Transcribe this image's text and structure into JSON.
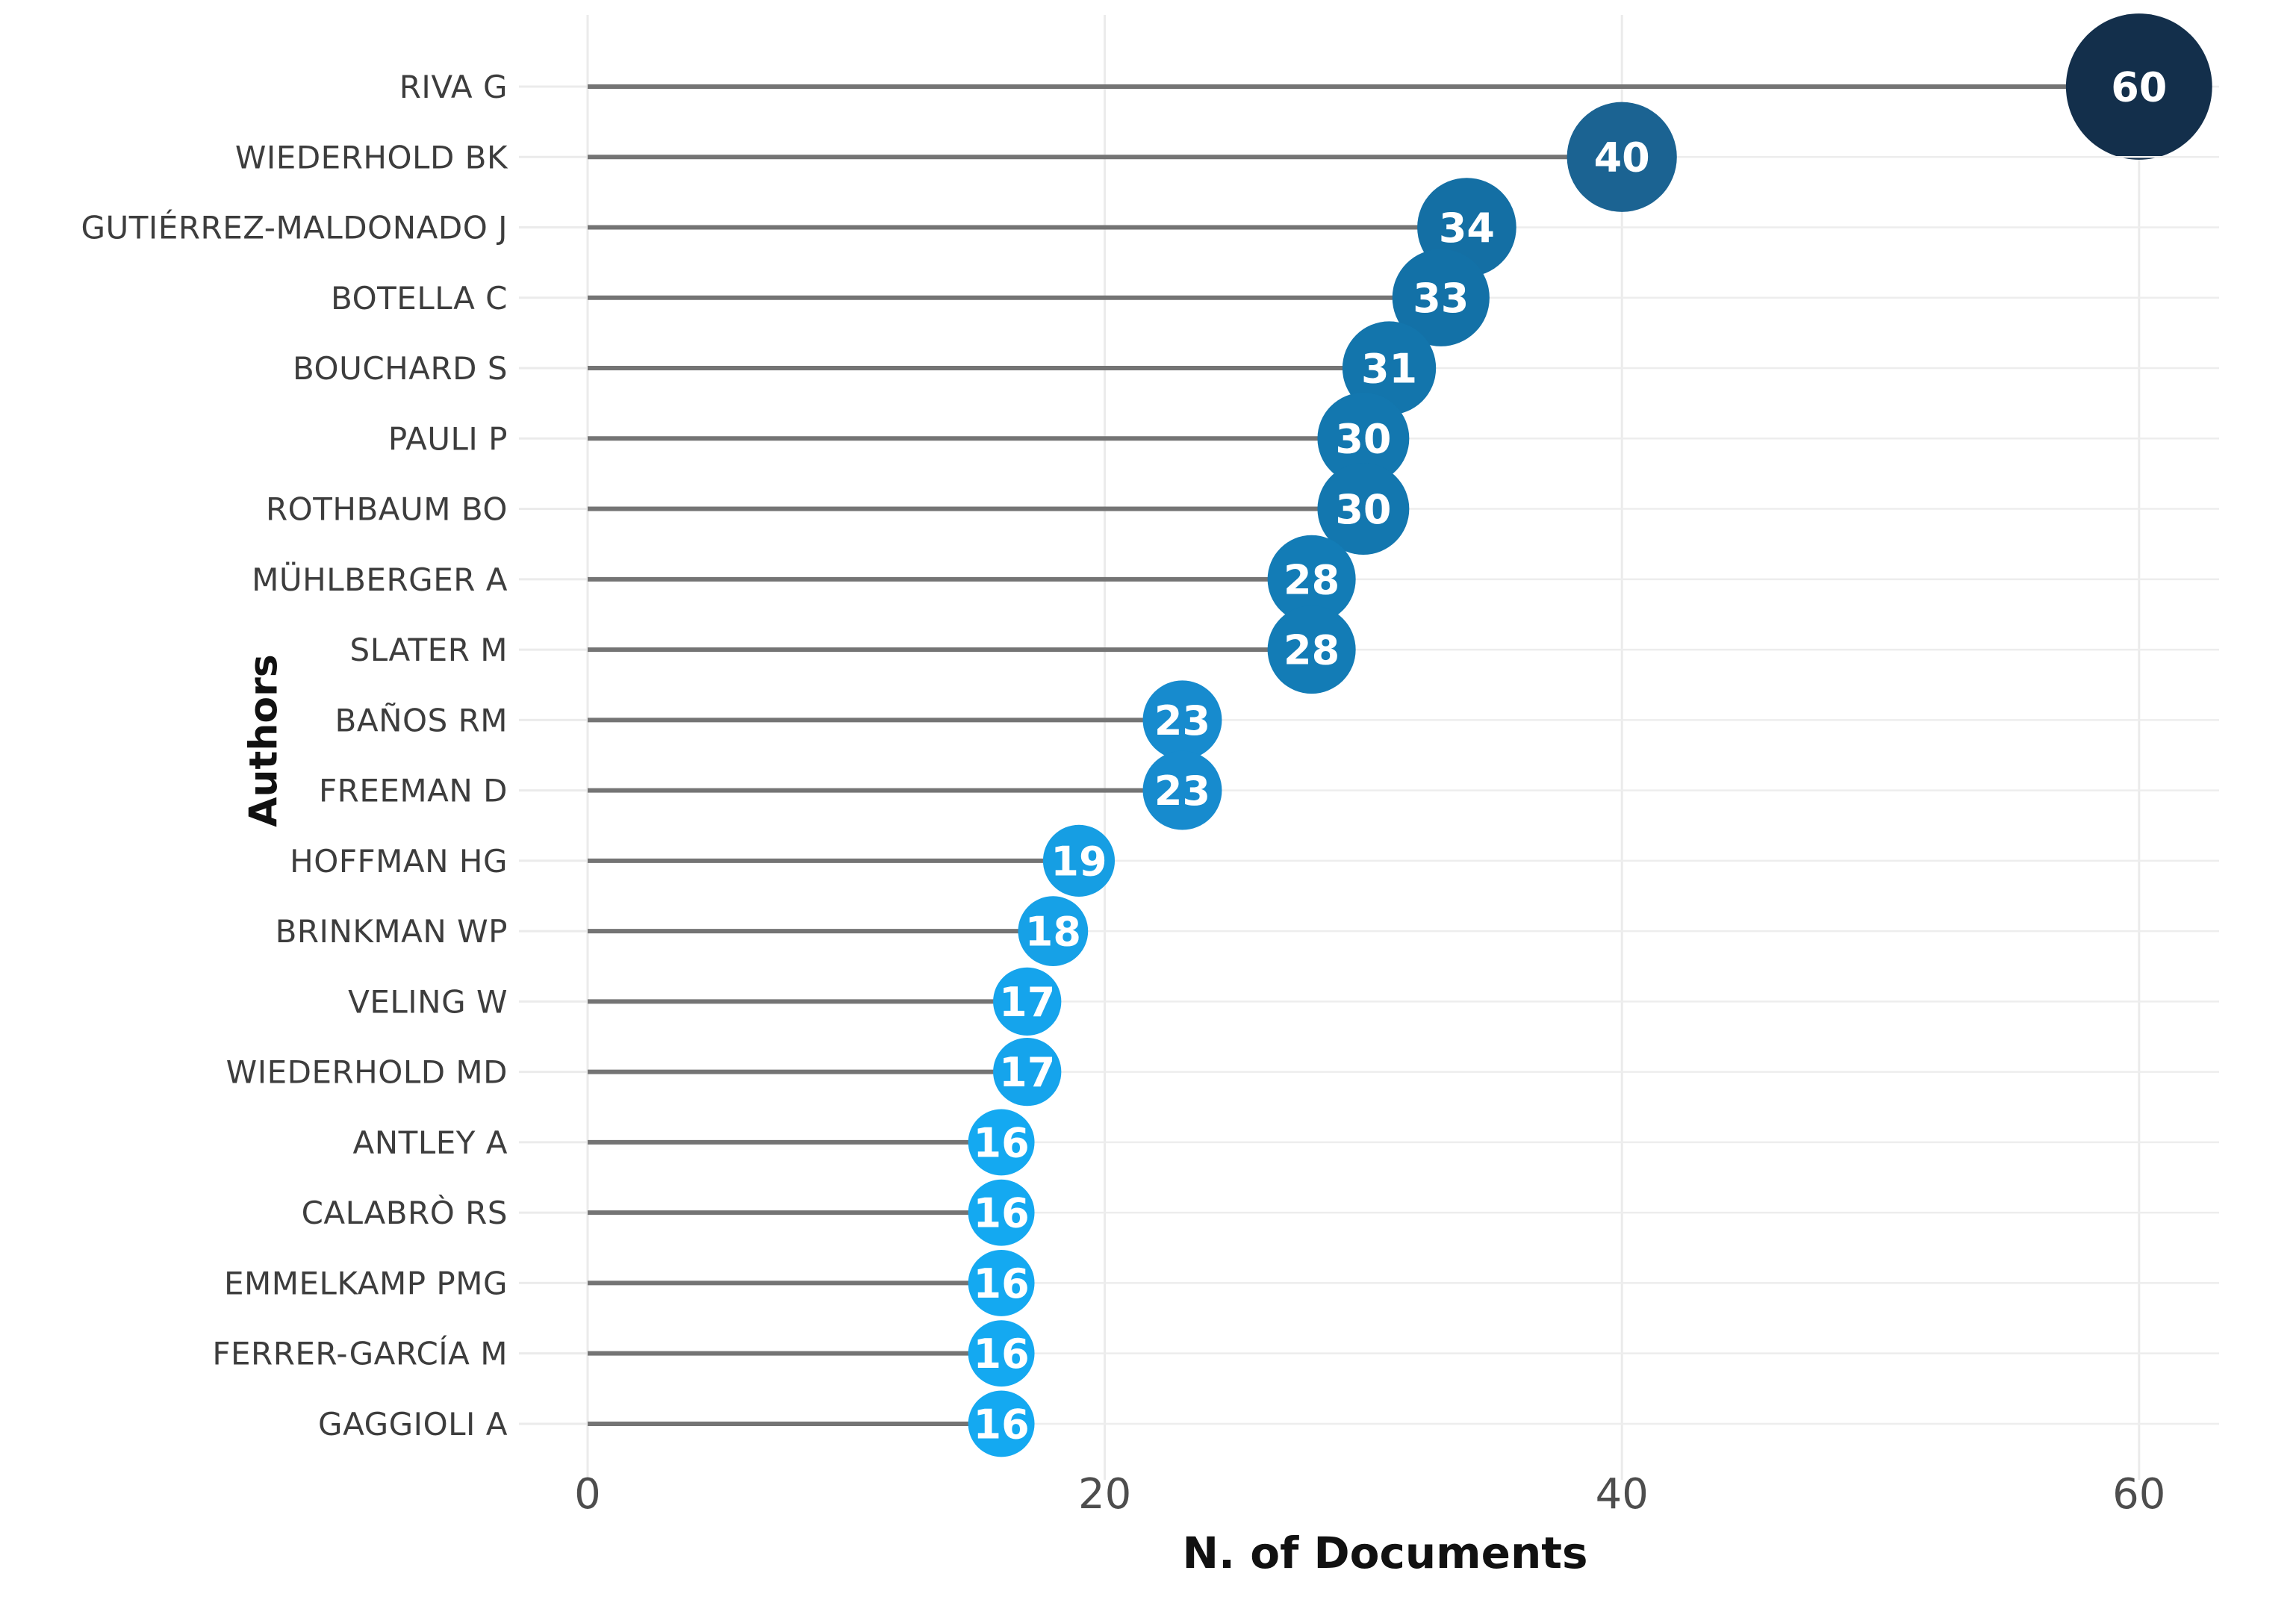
{
  "chart_data": {
    "type": "scatter",
    "subtype": "lollipop-bubble",
    "title": "",
    "xlabel": "N. of Documents",
    "ylabel": "Authors",
    "x_ticks": [
      0,
      20,
      40,
      60
    ],
    "xlim": [
      0,
      63
    ],
    "grid": true,
    "legend": "none",
    "categories": [
      "RIVA G",
      "WIEDERHOLD BK",
      "GUTIÉRREZ-MALDONADO J",
      "BOTELLA C",
      "BOUCHARD S",
      "PAULI P",
      "ROTHBAUM BO",
      "MÜHLBERGER A",
      "SLATER M",
      "BAÑOS RM",
      "FREEMAN D",
      "HOFFMAN HG",
      "BRINKMAN WP",
      "VELING W",
      "WIEDERHOLD MD",
      "ANTLEY A",
      "CALABRÒ RS",
      "EMMELKAMP PMG",
      "FERRER-GARCÍA M",
      "GAGGIOLI A"
    ],
    "values": [
      60,
      40,
      34,
      33,
      31,
      30,
      30,
      28,
      28,
      23,
      23,
      19,
      18,
      17,
      17,
      16,
      16,
      16,
      16,
      16
    ],
    "point_colors": [
      "#132F4B",
      "#1B6392",
      "#146FA4",
      "#1371A7",
      "#1375AC",
      "#1377AF",
      "#1377AF",
      "#137CB6",
      "#137CB6",
      "#178BCE",
      "#178BCE",
      "#169EE3",
      "#16A1E7",
      "#15A4EC",
      "#15A4EC",
      "#14A9F1",
      "#14A9F1",
      "#14A9F1",
      "#14A9F1",
      "#14A9F1"
    ],
    "colors": {
      "stem": "#747474",
      "grid": "#ebebeb",
      "row_grid": "#ededed",
      "tick": "#ebebeb",
      "bubble_label": "#ffffff",
      "category_label": "#3d3d3d",
      "tick_label": "#4d4d4d",
      "axis_title": "#111111",
      "background": "#ffffff"
    }
  }
}
